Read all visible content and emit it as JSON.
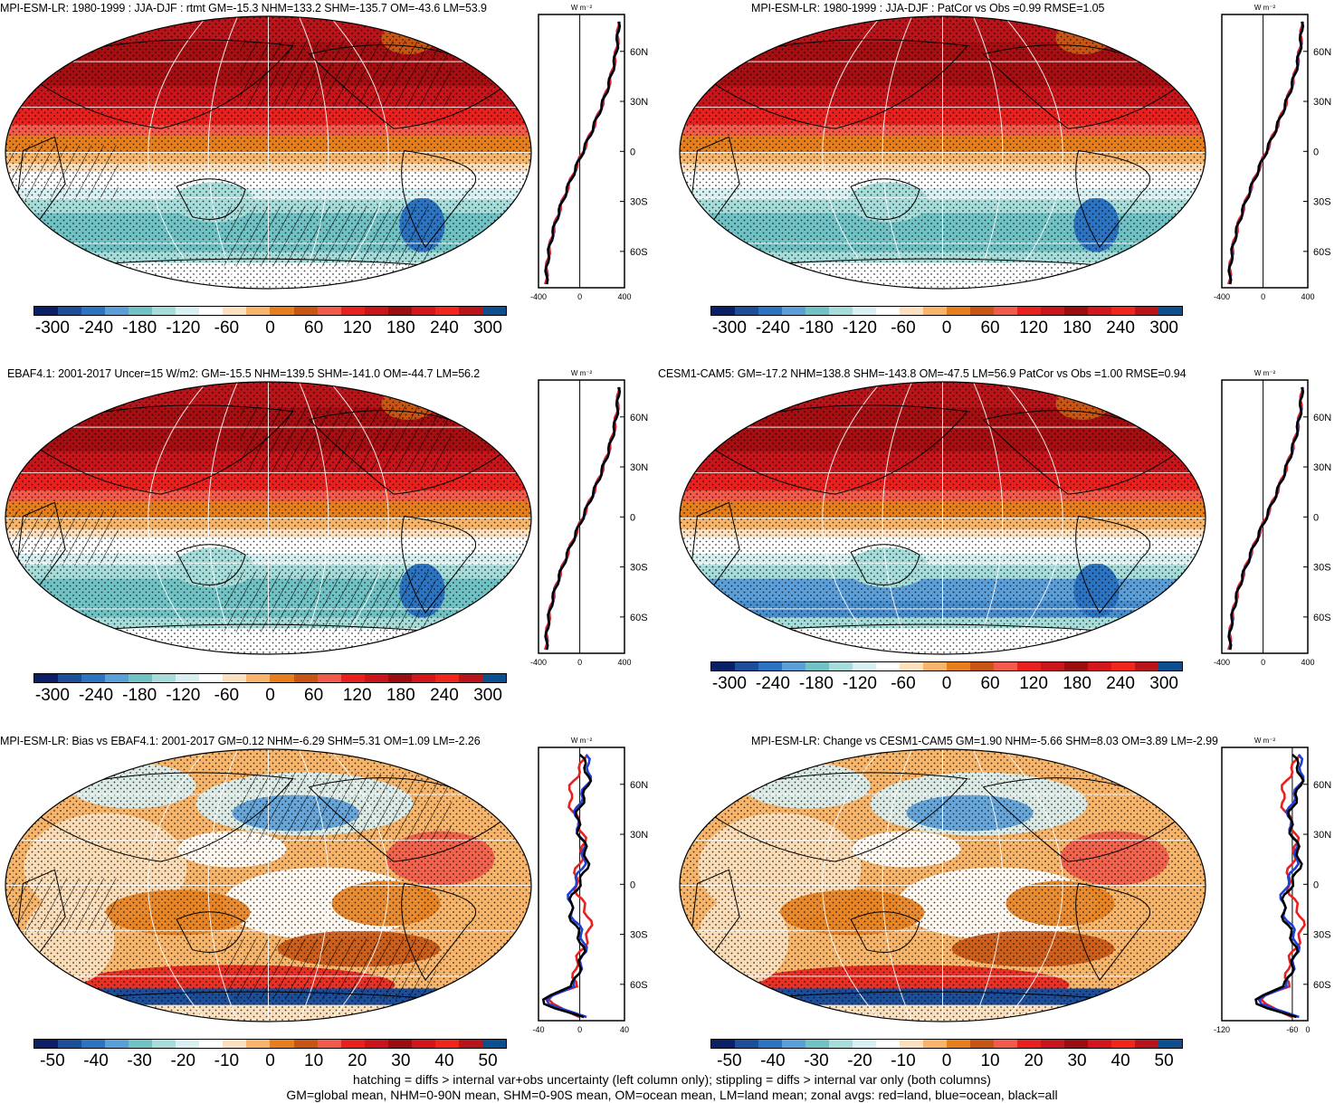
{
  "panels": [
    {
      "id": "p1",
      "title": "MPI-ESM-LR: 1980-1999 : JJA-DJF : rtmt GM=-15.3 NHM=133.2 SHM=-135.7 OM=-43.6 LM=53.9",
      "hatch": true,
      "style": "full",
      "cbar_labels": [
        "-300",
        "-240",
        "-180",
        "-120",
        "-60",
        "0",
        "60",
        "120",
        "180",
        "240",
        "300"
      ],
      "zonal": {
        "unit": "W m⁻²",
        "xticks": [
          "-400",
          "0",
          "400"
        ],
        "yticks": [
          "60N",
          "30N",
          "0",
          "30S",
          "60S"
        ]
      }
    },
    {
      "id": "p2",
      "title": "MPI-ESM-LR: 1980-1999 : JJA-DJF : PatCor vs Obs =0.99 RMSE=1.05",
      "hatch": false,
      "style": "full",
      "cbar_labels": [
        "-300",
        "-240",
        "-180",
        "-120",
        "-60",
        "0",
        "60",
        "120",
        "180",
        "240",
        "300"
      ],
      "zonal": {
        "unit": "W m⁻²",
        "xticks": [
          "-400",
          "0",
          "400"
        ],
        "yticks": [
          "60N",
          "30N",
          "0",
          "30S",
          "60S"
        ]
      }
    },
    {
      "id": "p3",
      "title": "EBAF4.1: 2001-2017 Uncer=15 W/m2: GM=-15.5 NHM=139.5 SHM=-141.0 OM=-44.7 LM=56.2",
      "hatch": true,
      "style": "full",
      "cbar_labels": [
        "-300",
        "-240",
        "-180",
        "-120",
        "-60",
        "0",
        "60",
        "120",
        "180",
        "240",
        "300"
      ],
      "zonal": {
        "unit": "W m⁻²",
        "xticks": [
          "-400",
          "0",
          "400"
        ],
        "yticks": [
          "60N",
          "30N",
          "0",
          "30S",
          "60S"
        ]
      }
    },
    {
      "id": "p4",
      "title": "CESM1-CAM5: GM=-17.2 NHM=138.8 SHM=-143.8 OM=-47.5 LM=56.9 PatCor vs Obs =1.00 RMSE=0.94",
      "hatch": false,
      "style": "full",
      "cbar_labels": [
        "-300",
        "-240",
        "-180",
        "-120",
        "-60",
        "0",
        "60",
        "120",
        "180",
        "240",
        "300"
      ],
      "zonal": {
        "unit": "W m⁻²",
        "xticks": [
          "-400",
          "0",
          "400"
        ],
        "yticks": [
          "60N",
          "30N",
          "0",
          "30S",
          "60S"
        ]
      }
    },
    {
      "id": "p5",
      "title": "MPI-ESM-LR: Bias vs EBAF4.1: 2001-2017 GM=0.12 NHM=-6.29 SHM=5.31 OM=1.09 LM=-2.26",
      "hatch": true,
      "style": "diff",
      "cbar_labels": [
        "-50",
        "-40",
        "-30",
        "-20",
        "-10",
        "0",
        "10",
        "20",
        "30",
        "40",
        "50"
      ],
      "zonal": {
        "unit": "W m⁻²",
        "xticks": [
          "-40",
          "0",
          "40"
        ],
        "yticks": [
          "60N",
          "30N",
          "0",
          "30S",
          "60S"
        ]
      }
    },
    {
      "id": "p6",
      "title": "MPI-ESM-LR: Change vs CESM1-CAM5 GM=1.90 NHM=-5.66 SHM=8.03 OM=3.89 LM=-2.99",
      "hatch": false,
      "style": "diff",
      "cbar_labels": [
        "-50",
        "-40",
        "-30",
        "-20",
        "-10",
        "0",
        "10",
        "20",
        "30",
        "40",
        "50"
      ],
      "zonal": {
        "unit": "W m⁻²",
        "xticks": [
          "-120",
          "-60",
          "0"
        ],
        "yticks": [
          "60N",
          "30N",
          "0",
          "30S",
          "60S"
        ]
      }
    }
  ],
  "colorbar_colors": [
    "#0b1f66",
    "#1d4e9a",
    "#2c73c2",
    "#5b9ed8",
    "#70c2c4",
    "#a6dcd9",
    "#d8f0f2",
    "#ffffff",
    "#fbe0c0",
    "#f6b56b",
    "#e57f1e",
    "#c95514",
    "#f25a4b",
    "#e8211e",
    "#c8141b",
    "#9c0d10",
    "#d2161c",
    "#f0251c",
    "#b8141a",
    "#0d4e8f"
  ],
  "footer": {
    "line1": "hatching = diffs > internal var+obs uncertainty (left column only); stippling = diffs > internal var only (both columns)",
    "line2": "GM=global mean, NHM=0-90N mean, SHM=0-90S mean, OM=ocean mean, LM=land mean; zonal avgs: red=land, blue=ocean, black=all"
  }
}
